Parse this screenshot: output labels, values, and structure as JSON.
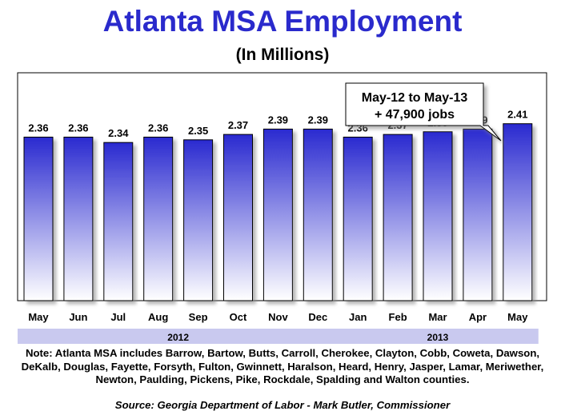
{
  "chart_data": {
    "type": "bar",
    "title": "Atlanta MSA Employment",
    "subtitle": "(In Millions)",
    "categories": [
      "May",
      "Jun",
      "Jul",
      "Aug",
      "Sep",
      "Oct",
      "Nov",
      "Dec",
      "Jan",
      "Feb",
      "Mar",
      "Apr",
      "May"
    ],
    "values": [
      2.36,
      2.36,
      2.34,
      2.36,
      2.35,
      2.37,
      2.39,
      2.39,
      2.36,
      2.37,
      2.38,
      2.39,
      2.41
    ],
    "value_labels": [
      "2.36",
      "2.36",
      "2.34",
      "2.36",
      "2.35",
      "2.37",
      "2.39",
      "2.39",
      "2.36",
      "2.37",
      "2.38",
      "2.39",
      "2.41"
    ],
    "years": [
      {
        "label": "2012",
        "start": 0,
        "end": 7
      },
      {
        "label": "2013",
        "start": 8,
        "end": 12
      }
    ],
    "ylim": [
      1.75,
      2.6
    ],
    "grid": false,
    "annotation": {
      "line1": "May-12 to May-13",
      "line2": "+ 47,900 jobs"
    },
    "bar_color_top": "#2a2ad0",
    "bar_color_bottom": "#ffffff",
    "year_band_color": "#c9c9ef"
  },
  "note": "Note: Atlanta  MSA includes Barrow, Bartow, Butts, Carroll, Cherokee, Clayton, Cobb, Coweta, Dawson, DeKalb, Douglas, Fayette, Forsyth, Fulton, Gwinnett, Haralson, Heard, Henry, Jasper, Lamar, Meriwether, Newton, Paulding, Pickens, Pike, Rockdale, Spalding and Walton counties.",
  "source": "Source: Georgia Department of Labor - Mark Butler, Commissioner"
}
